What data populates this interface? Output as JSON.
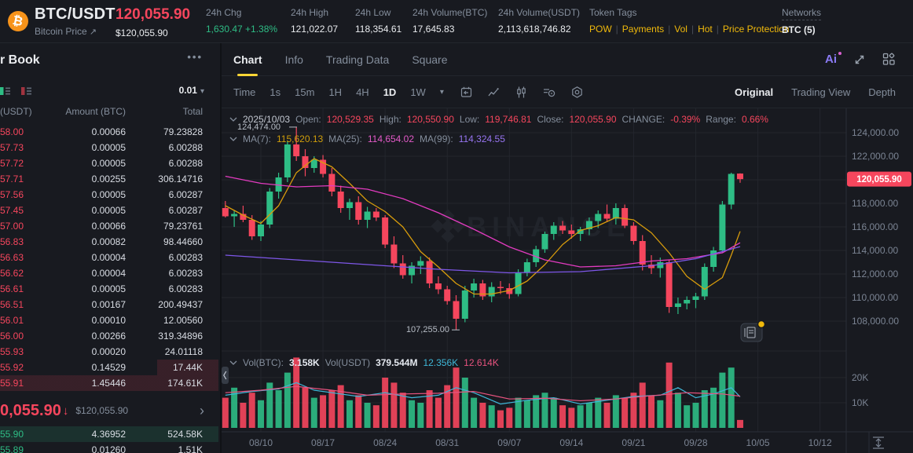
{
  "accent_colors": {
    "up": "#2ebd85",
    "down": "#f6465d",
    "brand_yellow": "#f0b90b",
    "badge_red": "#f6465d"
  },
  "icons": {
    "ai": "Ai",
    "more": "•••",
    "caret_down": "▾",
    "arrow_down": "↓",
    "chevron_right": "›",
    "external_link": "↗"
  },
  "header": {
    "pair": "BTC/USDT",
    "pair_sub": "Bitcoin Price",
    "price": "120,055.90",
    "price_usd": "$120,055.90",
    "stats": [
      {
        "label": "24h Chg",
        "value": "1,630.47 +1.38%"
      },
      {
        "label": "24h High",
        "value": "121,022.07"
      },
      {
        "label": "24h Low",
        "value": "118,354.61"
      },
      {
        "label": "24h Volume(BTC)",
        "value": "17,645.83"
      },
      {
        "label": "24h Volume(USDT)",
        "value": "2,113,618,746.82"
      }
    ],
    "token_tags_label": "Token Tags",
    "token_tags": [
      "POW",
      "Payments",
      "Vol",
      "Hot",
      "Price Protection"
    ],
    "networks_label": "Networks",
    "networks_value": "BTC (5)"
  },
  "order_book": {
    "title": "r Book",
    "precision": "0.01",
    "cols": [
      "(USDT)",
      "Amount (BTC)",
      "Total"
    ],
    "asks": [
      {
        "p": "58.00",
        "a": "0.00066",
        "t": "79.23828",
        "d": 0
      },
      {
        "p": "57.73",
        "a": "0.00005",
        "t": "6.00288",
        "d": 0
      },
      {
        "p": "57.72",
        "a": "0.00005",
        "t": "6.00288",
        "d": 0
      },
      {
        "p": "57.71",
        "a": "0.00255",
        "t": "306.14716",
        "d": 0
      },
      {
        "p": "57.56",
        "a": "0.00005",
        "t": "6.00287",
        "d": 0
      },
      {
        "p": "57.45",
        "a": "0.00005",
        "t": "6.00287",
        "d": 0
      },
      {
        "p": "57.00",
        "a": "0.00066",
        "t": "79.23761",
        "d": 0
      },
      {
        "p": "56.83",
        "a": "0.00082",
        "t": "98.44660",
        "d": 0
      },
      {
        "p": "56.63",
        "a": "0.00004",
        "t": "6.00283",
        "d": 0
      },
      {
        "p": "56.62",
        "a": "0.00004",
        "t": "6.00283",
        "d": 0
      },
      {
        "p": "56.61",
        "a": "0.00005",
        "t": "6.00283",
        "d": 0
      },
      {
        "p": "56.51",
        "a": "0.00167",
        "t": "200.49437",
        "d": 0
      },
      {
        "p": "56.01",
        "a": "0.00010",
        "t": "12.00560",
        "d": 0
      },
      {
        "p": "56.00",
        "a": "0.00266",
        "t": "319.34896",
        "d": 0
      },
      {
        "p": "55.93",
        "a": "0.00020",
        "t": "24.01118",
        "d": 0
      },
      {
        "p": "55.92",
        "a": "0.14529",
        "t": "17.44K",
        "d": 28
      },
      {
        "p": "55.91",
        "a": "1.45446",
        "t": "174.61K",
        "d": 100
      }
    ],
    "last_price": "0,055.90",
    "last_price_usd": "$120,055.90",
    "bids": [
      {
        "p": "55.90",
        "a": "4.36952",
        "t": "524.58K",
        "d": 100
      },
      {
        "p": "55.89",
        "a": "0.01260",
        "t": "1.51K",
        "d": 0
      }
    ]
  },
  "chart_panel": {
    "tabs": [
      "Chart",
      "Info",
      "Trading Data",
      "Square"
    ],
    "intervals": [
      "Time",
      "1s",
      "15m",
      "1H",
      "4H",
      "1D",
      "1W"
    ],
    "active_interval": "1D",
    "views": [
      "Original",
      "Trading View",
      "Depth"
    ],
    "legend": {
      "date": "2025/10/03",
      "open_label": "Open:",
      "open": "120,529.35",
      "high_label": "High:",
      "high": "120,550.90",
      "low_label": "Low:",
      "low": "119,746.81",
      "close_label": "Close:",
      "close": "120,055.90",
      "change_label": "CHANGE:",
      "change": "-0.39%",
      "range_label": "Range:",
      "range": "0.66%"
    },
    "ma_legend": {
      "ma7_label": "MA(7):",
      "ma7": "115,620.13",
      "ma25_label": "MA(25):",
      "ma25": "114,654.02",
      "ma99_label": "MA(99):",
      "ma99": "114,324.55"
    },
    "vol_legend": {
      "volbtc_label": "Vol(BTC):",
      "volbtc": "3.158K",
      "volusdt_label": "Vol(USDT)",
      "volusdt": "379.544M",
      "ma1": "12.356K",
      "ma2": "12.614K"
    },
    "watermark": "BINANCE"
  },
  "chart_data": {
    "type": "candlestick",
    "interval": "1D",
    "first_candle_date": "08/06",
    "x_tick_candle_index": 4,
    "x_ticks": [
      "08/10",
      "08/17",
      "08/24",
      "08/31",
      "09/07",
      "09/14",
      "09/21",
      "09/28",
      "10/05",
      "10/12"
    ],
    "y_ticks": [
      {
        "label": "124,000.00",
        "p": 124000
      },
      {
        "label": "122,000.00",
        "p": 122000
      },
      {
        "label": "",
        "p": 120000
      },
      {
        "label": "118,000.00",
        "p": 118000
      },
      {
        "label": "116,000.00",
        "p": 116000
      },
      {
        "label": "114,000.00",
        "p": 114000
      },
      {
        "label": "112,000.00",
        "p": 112000
      },
      {
        "label": "110,000.00",
        "p": 110000
      },
      {
        "label": "108,000.00",
        "p": 108000
      }
    ],
    "vol_ticks": [
      {
        "label": "20K",
        "v": 20
      },
      {
        "label": "10K",
        "v": 10
      }
    ],
    "last_price": 120055.9,
    "last_price_label": "120,055.90",
    "markers": {
      "high_label": "124,474.00",
      "high": 124474,
      "low_label": "107,255.00",
      "low": 107255
    },
    "candles": [
      [
        117600,
        118200,
        116800,
        116900,
        12
      ],
      [
        116900,
        117400,
        116000,
        117100,
        16
      ],
      [
        117100,
        117800,
        116400,
        116600,
        10
      ],
      [
        116600,
        117000,
        114900,
        115200,
        14
      ],
      [
        115200,
        116500,
        114800,
        116200,
        11
      ],
      [
        116200,
        119300,
        115900,
        119000,
        18
      ],
      [
        119000,
        120600,
        118400,
        120200,
        15
      ],
      [
        120200,
        123300,
        119800,
        123000,
        22
      ],
      [
        123000,
        124474,
        121600,
        122000,
        28
      ],
      [
        122000,
        122600,
        120300,
        121000,
        16
      ],
      [
        121000,
        122000,
        120600,
        121700,
        12
      ],
      [
        121700,
        122100,
        120200,
        120500,
        13
      ],
      [
        120500,
        121000,
        118600,
        119000,
        15
      ],
      [
        119000,
        119500,
        117200,
        117600,
        17
      ],
      [
        117600,
        118400,
        116600,
        118100,
        11
      ],
      [
        118100,
        118600,
        116200,
        116600,
        13
      ],
      [
        116600,
        117700,
        115900,
        117300,
        10
      ],
      [
        117300,
        117600,
        116500,
        116800,
        9
      ],
      [
        116800,
        117000,
        114200,
        114500,
        20
      ],
      [
        114500,
        115200,
        112500,
        112900,
        18
      ],
      [
        112900,
        113600,
        111600,
        111900,
        14
      ],
      [
        111900,
        113000,
        111200,
        112700,
        11
      ],
      [
        112700,
        113500,
        112000,
        113100,
        10
      ],
      [
        113100,
        113400,
        110800,
        111200,
        15
      ],
      [
        111200,
        111800,
        110300,
        110700,
        12
      ],
      [
        110700,
        111000,
        109400,
        109700,
        17
      ],
      [
        109700,
        110200,
        107255,
        108200,
        24
      ],
      [
        108200,
        111000,
        107900,
        110600,
        20
      ],
      [
        110600,
        111600,
        110000,
        111200,
        12
      ],
      [
        111200,
        111500,
        109800,
        110100,
        10
      ],
      [
        110100,
        111300,
        109600,
        110900,
        9
      ],
      [
        110900,
        111400,
        110300,
        110800,
        7
      ],
      [
        110800,
        111200,
        109900,
        110300,
        8
      ],
      [
        110300,
        112400,
        110100,
        112100,
        12
      ],
      [
        112100,
        113300,
        111800,
        113000,
        11
      ],
      [
        113000,
        114400,
        112600,
        114100,
        13
      ],
      [
        114100,
        115600,
        113800,
        115400,
        14
      ],
      [
        115400,
        116400,
        114900,
        116100,
        12
      ],
      [
        116100,
        116500,
        115400,
        115700,
        9
      ],
      [
        115700,
        116200,
        115000,
        115400,
        8
      ],
      [
        115400,
        116000,
        114800,
        115800,
        9
      ],
      [
        115800,
        116800,
        115300,
        116500,
        10
      ],
      [
        116500,
        117400,
        115900,
        117100,
        12
      ],
      [
        117100,
        117900,
        116400,
        116700,
        10
      ],
      [
        116700,
        118000,
        116200,
        117600,
        13
      ],
      [
        117600,
        117900,
        115900,
        116100,
        12
      ],
      [
        116100,
        116400,
        114500,
        114800,
        14
      ],
      [
        114800,
        115300,
        112300,
        112800,
        18
      ],
      [
        112800,
        113600,
        112000,
        112500,
        13
      ],
      [
        112500,
        113400,
        111700,
        113000,
        11
      ],
      [
        113000,
        113200,
        108700,
        109200,
        26
      ],
      [
        109200,
        110000,
        108600,
        109500,
        14
      ],
      [
        109500,
        110100,
        109000,
        109800,
        9
      ],
      [
        109800,
        110400,
        109100,
        110100,
        10
      ],
      [
        110100,
        112900,
        109800,
        112600,
        15
      ],
      [
        112600,
        114300,
        112200,
        114000,
        16
      ],
      [
        114000,
        118200,
        113800,
        117900,
        22
      ],
      [
        117900,
        120600,
        117500,
        120500,
        24
      ],
      [
        120529.35,
        120550.9,
        119746.81,
        120055.9,
        3.158
      ]
    ],
    "ma_overlays": [
      {
        "name": "MA(7)",
        "color": "#d89c0c",
        "points": [
          [
            0,
            117800
          ],
          [
            2,
            117000
          ],
          [
            4,
            116300
          ],
          [
            6,
            117800
          ],
          [
            8,
            120600
          ],
          [
            10,
            121800
          ],
          [
            12,
            121100
          ],
          [
            14,
            119700
          ],
          [
            16,
            118200
          ],
          [
            18,
            117300
          ],
          [
            20,
            116000
          ],
          [
            22,
            113900
          ],
          [
            24,
            112600
          ],
          [
            26,
            111200
          ],
          [
            28,
            110300
          ],
          [
            30,
            110300
          ],
          [
            32,
            110600
          ],
          [
            34,
            111400
          ],
          [
            36,
            112800
          ],
          [
            38,
            114500
          ],
          [
            40,
            115700
          ],
          [
            42,
            116100
          ],
          [
            44,
            116800
          ],
          [
            46,
            116600
          ],
          [
            48,
            115500
          ],
          [
            50,
            113800
          ],
          [
            52,
            111800
          ],
          [
            54,
            110700
          ],
          [
            56,
            111700
          ],
          [
            57,
            113600
          ],
          [
            58,
            115620.13
          ]
        ]
      },
      {
        "name": "MA(25)",
        "color": "#e33bc0",
        "points": [
          [
            0,
            120300
          ],
          [
            4,
            119700
          ],
          [
            8,
            119400
          ],
          [
            12,
            119500
          ],
          [
            16,
            119200
          ],
          [
            20,
            118400
          ],
          [
            24,
            117200
          ],
          [
            28,
            115800
          ],
          [
            32,
            114300
          ],
          [
            36,
            113200
          ],
          [
            40,
            112600
          ],
          [
            44,
            112700
          ],
          [
            48,
            113100
          ],
          [
            52,
            113300
          ],
          [
            56,
            113800
          ],
          [
            58,
            114654.02
          ]
        ]
      },
      {
        "name": "MA(99)",
        "color": "#7e57e8",
        "points": [
          [
            0,
            113600
          ],
          [
            8,
            113200
          ],
          [
            16,
            112800
          ],
          [
            24,
            112400
          ],
          [
            32,
            112100
          ],
          [
            40,
            112200
          ],
          [
            48,
            112700
          ],
          [
            53,
            113300
          ],
          [
            58,
            114324.55
          ]
        ]
      }
    ],
    "vol_ma_overlays": [
      {
        "name": "Vol MA(5)",
        "color": "#3fb8d9",
        "points": [
          [
            0,
            13
          ],
          [
            3,
            14.5
          ],
          [
            6,
            15.5
          ],
          [
            8,
            18
          ],
          [
            10,
            15
          ],
          [
            12,
            14
          ],
          [
            15,
            12.5
          ],
          [
            18,
            14
          ],
          [
            21,
            12
          ],
          [
            24,
            13
          ],
          [
            26,
            16
          ],
          [
            28,
            14
          ],
          [
            31,
            9.5
          ],
          [
            34,
            11
          ],
          [
            37,
            12
          ],
          [
            40,
            9.5
          ],
          [
            43,
            11
          ],
          [
            46,
            12.5
          ],
          [
            49,
            13
          ],
          [
            51,
            16
          ],
          [
            53,
            12
          ],
          [
            55,
            13.5
          ],
          [
            57,
            16
          ],
          [
            58,
            12.356
          ]
        ]
      },
      {
        "name": "Vol MA(10)",
        "color": "#e8537f",
        "points": [
          [
            0,
            14
          ],
          [
            4,
            15
          ],
          [
            8,
            16.5
          ],
          [
            12,
            15
          ],
          [
            16,
            13
          ],
          [
            20,
            13.5
          ],
          [
            24,
            13.8
          ],
          [
            28,
            14.5
          ],
          [
            32,
            11.5
          ],
          [
            36,
            11.8
          ],
          [
            40,
            10.8
          ],
          [
            44,
            11.5
          ],
          [
            48,
            12.8
          ],
          [
            52,
            14
          ],
          [
            56,
            13.5
          ],
          [
            58,
            12.614
          ]
        ]
      }
    ]
  }
}
